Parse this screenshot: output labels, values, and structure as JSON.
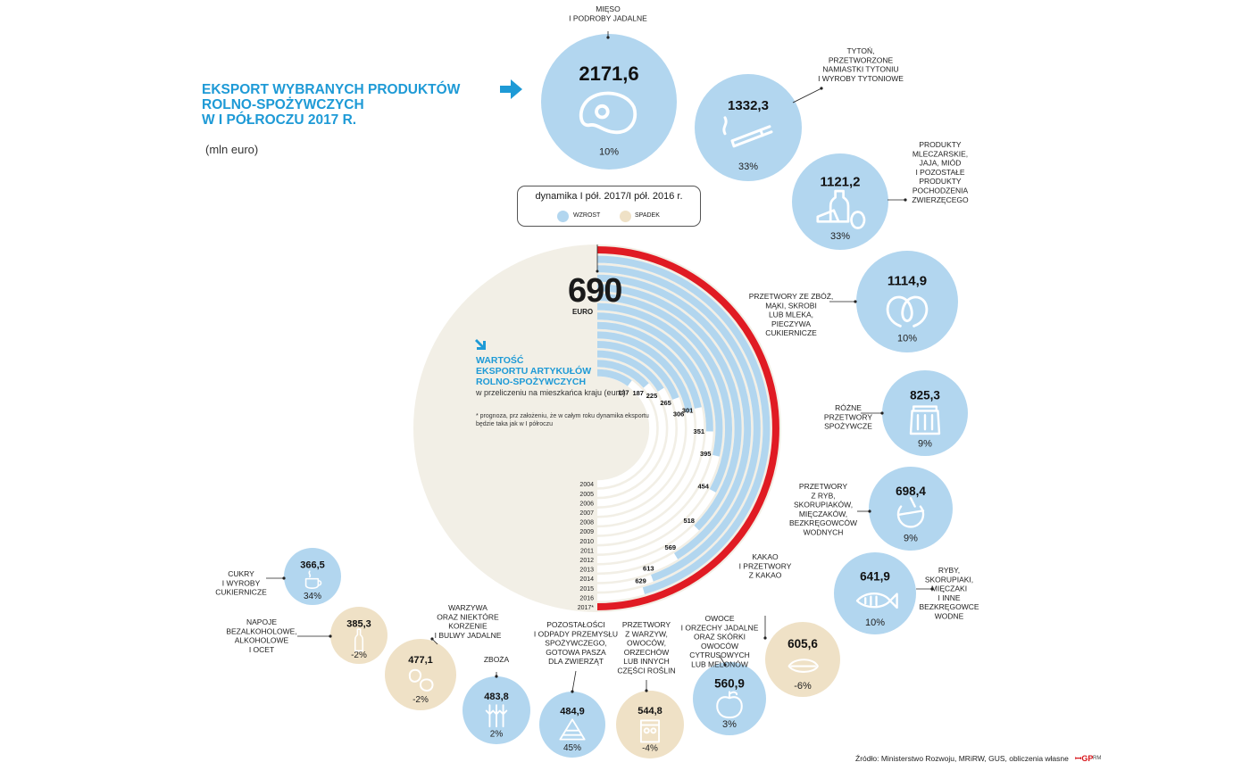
{
  "title": {
    "lines": [
      "EKSPORT WYBRANYCH PRODUKTÓW",
      "ROLNO-SPOŻYWCZYCH",
      "W I PÓŁROCZU 2017 R."
    ],
    "unit": "(mln euro)"
  },
  "legend": {
    "caption": "dynamika I pół. 2017/I pół. 2016 r.",
    "up_label": "WZROST",
    "down_label": "SPADEK"
  },
  "colors": {
    "up": "#b2d6ef",
    "down": "#efe1c6",
    "accent": "#1e9ad6",
    "red": "#e01b23",
    "beige": "#f2efe6",
    "line": "#222222"
  },
  "per_capita": {
    "title_lines": [
      "WARTOŚĆ",
      "EKSPORTU ARTYKUŁÓW",
      "ROLNO-SPOŻYWCZYCH"
    ],
    "subtitle": "w przeliczeniu na mieszkańca kraju (euro)",
    "note": "* prognoza, prz założeniu, że w całym roku dynamika eksportu będzie taka jak w I półroczu",
    "headline_value": "690",
    "headline_unit": "EURO"
  },
  "source": "Źródło: Ministerstwo Rozwoju, MRiRW, GUS, obliczenia własne",
  "logo": "ꟷGP",
  "author": "RM",
  "chart_data": [
    {
      "type": "bar",
      "title": "Eksport wybranych produktów rolno-spożywczych w I półroczu 2017 r.",
      "unit": "mln euro",
      "categories": [
        "MIĘSO I PODROBY JADALNE",
        "TYTOŃ, PRZETWORZONE NAMIASTKI TYTONIU I WYROBY TYTONIOWE",
        "PRODUKTY MLECZARSKIE, JAJA, MIÓD I POZOSTAŁE PRODUKTY POCHODZENIA ZWIERZĘCEGO",
        "PRZETWORY ZE ZBÓŻ, MĄKI, SKROBI LUB MLEKA, PIECZYWA CUKIERNICZE",
        "RÓŻNE PRZETWORY SPOŻYWCZE",
        "PRZETWORY Z RYB, SKORUPIAKÓW, MIĘCZAKÓW, BEZKRĘGOWCÓW WODNYCH",
        "RYBY, SKORUPIAKI, MIĘCZAKI I INNE BEZKRĘGOWCE WODNE",
        "KAKAO I PRZETWORY Z KAKAO",
        "OWOCE I ORZECHY JADALNE ORAZ SKÓRKI OWOCÓW CYTRUSOWYCH LUB MELONÓW",
        "PRZETWORY Z WARZYW, OWOCÓW, ORZECHÓW LUB INNYCH CZĘŚCI ROŚLIN",
        "POZOSTAŁOŚCI I ODPADY PRZEMYSŁU SPOŻYWCZEGO, GOTOWA PASZA DLA ZWIERZĄT",
        "ZBOŻA",
        "WARZYWA ORAZ NIEKTÓRE KORZENIE I BULWY JADALNE",
        "NAPOJE BEZALKOHOLOWE, ALKOHOLOWE I OCET",
        "CUKRY I WYROBY CUKIERNICZE"
      ],
      "values": [
        2171.6,
        1332.3,
        1121.2,
        1114.9,
        825.3,
        698.4,
        641.9,
        605.6,
        560.9,
        544.8,
        484.9,
        483.8,
        477.1,
        385.3,
        366.5
      ],
      "labels": [
        "2171,6",
        "1332,3",
        "1121,2",
        "1114,9",
        "825,3",
        "698,4",
        "641,9",
        "605,6",
        "560,9",
        "544,8",
        "484,9",
        "483,8",
        "477,1",
        "385,3",
        "366,5"
      ],
      "change_labels": [
        "10%",
        "33%",
        "33%",
        "10%",
        "9%",
        "9%",
        "10%",
        "-6%",
        "3%",
        "-4%",
        "45%",
        "2%",
        "-2%",
        "-2%",
        "34%"
      ],
      "change_pct": [
        10,
        33,
        33,
        10,
        9,
        9,
        10,
        -6,
        3,
        -4,
        45,
        2,
        -2,
        -2,
        34
      ],
      "icons": [
        "steak-icon",
        "cigarette-icon",
        "dairy-icon",
        "pretzel-icon",
        "jar-icon",
        "fish-can-icon",
        "fish-icon",
        "cocoa-icon",
        "apple-icon",
        "canned-vegetables-icon",
        "feed-pile-icon",
        "wheat-icon",
        "potato-icon",
        "bottle-icon",
        "cup-icon"
      ]
    },
    {
      "type": "bar",
      "title": "WARTOŚĆ EKSPORTU ARTYKUŁÓW ROLNO-SPOŻYWCZYCH w przeliczeniu na mieszkańca kraju (euro)",
      "categories": [
        "2004",
        "2005",
        "2006",
        "2007",
        "2008",
        "2009",
        "2010",
        "2011",
        "2012",
        "2013",
        "2014",
        "2015",
        "2016",
        "2017*"
      ],
      "values": [
        137,
        187,
        225,
        265,
        306,
        301,
        351,
        395,
        454,
        518,
        569,
        613,
        629,
        690
      ],
      "labels": [
        "137",
        "187",
        "225",
        "265",
        "306",
        "301",
        "351",
        "395",
        "454",
        "518",
        "569",
        "613",
        "629",
        "690"
      ],
      "ylim": [
        0,
        690
      ],
      "note": "2017* prognoza"
    }
  ]
}
